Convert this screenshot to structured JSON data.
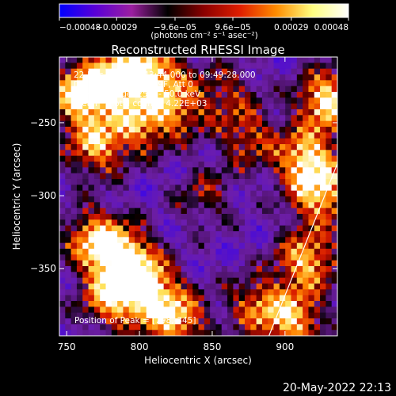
{
  "chart_data": {
    "type": "heatmap",
    "title": "Reconstructed RHESSI Image",
    "xlabel": "Heliocentric X (arcsec)",
    "ylabel": "Heliocentric Y (arcsec)",
    "xlim": [
      745,
      936
    ],
    "ylim": [
      -396,
      -205
    ],
    "x_ticks": [
      {
        "v": 750,
        "label": "750"
      },
      {
        "v": 800,
        "label": "800"
      },
      {
        "v": 850,
        "label": "850"
      },
      {
        "v": 900,
        "label": "900"
      }
    ],
    "y_ticks": [
      {
        "v": -250,
        "label": "−250"
      },
      {
        "v": -300,
        "label": "−300"
      },
      {
        "v": -350,
        "label": "−350"
      }
    ],
    "colorbar": {
      "range": [
        -0.00048,
        0.00048
      ],
      "ticks": [
        {
          "v": -0.00048,
          "label": "−0.00048"
        },
        {
          "v": -0.00029,
          "label": "−0.00029"
        },
        {
          "v": -9.6e-05,
          "label": "−9.6e−05"
        },
        {
          "v": 9.6e-05,
          "label": "9.6e−05"
        },
        {
          "v": 0.00029,
          "label": "0.00029"
        },
        {
          "v": 0.00048,
          "label": "0.00048"
        }
      ],
      "unit_label": "(photons cm⁻² s⁻¹ asec⁻²)",
      "colors": [
        "#0000ff",
        "#5a00d6",
        "#9b1fa0",
        "#000000",
        "#8b0000",
        "#e01e00",
        "#ff8c00",
        "#ffff80",
        "#ffffff"
      ]
    },
    "annotations": [
      "22-Dec-2014 09:43:44.000 to 09:49:28.000",
      "Detectors: 3F 6F 7F 9F, Att 0",
      "Energy Range: 25.0 - 50.0 keV",
      "Clean     Total counts: 4.22E+03"
    ],
    "peak_label": "Position of Peak = [798,-345]",
    "peak": [
      798,
      -345
    ],
    "limb_line": [
      [
        889,
        -396
      ],
      [
        936,
        -278
      ]
    ],
    "hotspots": [
      {
        "x": 760,
        "y": -230,
        "i": 0.95
      },
      {
        "x": 785,
        "y": -220,
        "i": 0.85
      },
      {
        "x": 810,
        "y": -215,
        "i": 0.75
      },
      {
        "x": 770,
        "y": -265,
        "i": 0.7
      },
      {
        "x": 800,
        "y": -250,
        "i": 0.6
      },
      {
        "x": 826,
        "y": -240,
        "i": 0.55
      },
      {
        "x": 770,
        "y": -330,
        "i": 0.75
      },
      {
        "x": 790,
        "y": -345,
        "i": 0.95
      },
      {
        "x": 805,
        "y": -365,
        "i": 0.85
      },
      {
        "x": 825,
        "y": -385,
        "i": 0.75
      },
      {
        "x": 780,
        "y": -370,
        "i": 0.65
      },
      {
        "x": 930,
        "y": -235,
        "i": 0.9
      },
      {
        "x": 915,
        "y": -275,
        "i": 0.85
      },
      {
        "x": 925,
        "y": -300,
        "i": 0.75
      },
      {
        "x": 915,
        "y": -345,
        "i": 0.75
      },
      {
        "x": 905,
        "y": -385,
        "i": 0.75
      },
      {
        "x": 880,
        "y": -375,
        "i": 0.5
      },
      {
        "x": 875,
        "y": -260,
        "i": 0.45
      },
      {
        "x": 860,
        "y": -230,
        "i": 0.35
      },
      {
        "x": 845,
        "y": -300,
        "i": 0.3
      }
    ]
  },
  "footer_timestamp": "20-May-2022 22:13"
}
